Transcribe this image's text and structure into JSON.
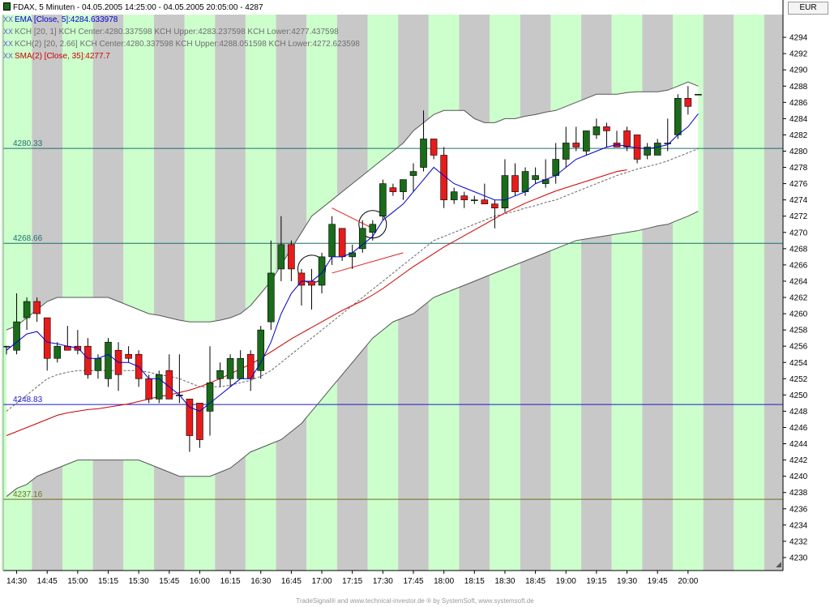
{
  "legend": {
    "title": "FDAX, 5 Minuten - 04.05.2005 14:25:00 - 04.05.2005 20:05:00 - 4287",
    "indicator_prefix": "XX",
    "ema": "EMA [Close, 5]:4284.633978",
    "kch1": "KCH [20, 1] KCH Center:4280.337598 KCH Upper:4283.237598 KCH Lower:4277.437598",
    "kch2": "KCH(2) [20, 2.66] KCH Center:4280.337598 KCH Upper:4288.051598 KCH Lower:4272.623598",
    "sma": "SMA(2) [Close, 35]:4277.7"
  },
  "currency": "EUR",
  "footer": "TradeSignal® and www.technical-investor.de ® by  SystemSoft, www.systemsoft.de",
  "colors": {
    "background": "#ffffff",
    "band_gray": "#c8c8c8",
    "band_green": "#ccffcc",
    "channel_fill": "#ffffff",
    "bull": "#1a6b1a",
    "bear": "#e81b1b",
    "ema": "#0000cc",
    "sma": "#cc0000",
    "kch_center": "#666666",
    "kch_outer": "#555555",
    "hline_teal": "#1f6f6f",
    "hline_blue": "#1a1acc",
    "hline_olive": "#6f6f1f"
  },
  "chart_data": {
    "type": "candlestick",
    "instrument": "FDAX",
    "interval": "5 Minuten",
    "ylim": [
      4228.4,
      4296.8
    ],
    "y_ticks": [
      4230,
      4232,
      4234,
      4236,
      4238,
      4240,
      4242,
      4244,
      4246,
      4248,
      4250,
      4252,
      4254,
      4256,
      4258,
      4260,
      4262,
      4264,
      4266,
      4268,
      4270,
      4272,
      4274,
      4276,
      4278,
      4280,
      4282,
      4284,
      4286,
      4288,
      4290,
      4292,
      4294
    ],
    "x_ticks": [
      "14:30",
      "14:45",
      "15:00",
      "15:15",
      "15:30",
      "15:45",
      "16:00",
      "16:15",
      "16:30",
      "16:45",
      "17:00",
      "17:15",
      "17:30",
      "17:45",
      "18:00",
      "18:15",
      "18:30",
      "18:45",
      "19:00",
      "19:15",
      "19:30",
      "19:45",
      "20:00"
    ],
    "candles": [
      {
        "t": "14:25",
        "o": 4256,
        "h": 4256,
        "l": 4255,
        "c": 4256
      },
      {
        "t": "14:30",
        "o": 4255.5,
        "h": 4262.5,
        "l": 4255,
        "c": 4259
      },
      {
        "t": "14:35",
        "o": 4259.5,
        "h": 4262,
        "l": 4258,
        "c": 4261.5
      },
      {
        "t": "14:40",
        "o": 4261.5,
        "h": 4262,
        "l": 4259,
        "c": 4260
      },
      {
        "t": "14:45",
        "o": 4259.5,
        "h": 4259.5,
        "l": 4253,
        "c": 4254.5
      },
      {
        "t": "14:50",
        "o": 4254.5,
        "h": 4256.5,
        "l": 4254,
        "c": 4256
      },
      {
        "t": "14:55",
        "o": 4256,
        "h": 4258.5,
        "l": 4255.5,
        "c": 4255.5
      },
      {
        "t": "15:00",
        "o": 4256,
        "h": 4258,
        "l": 4255,
        "c": 4255.5
      },
      {
        "t": "15:05",
        "o": 4256,
        "h": 4257,
        "l": 4252,
        "c": 4252.5
      },
      {
        "t": "15:10",
        "o": 4253,
        "h": 4255,
        "l": 4252,
        "c": 4254.5
      },
      {
        "t": "15:15",
        "o": 4252,
        "h": 4257,
        "l": 4251,
        "c": 4256.5
      },
      {
        "t": "15:20",
        "o": 4255.5,
        "h": 4256.5,
        "l": 4250.5,
        "c": 4252.5
      },
      {
        "t": "15:25",
        "o": 4255,
        "h": 4256,
        "l": 4254,
        "c": 4254.5
      },
      {
        "t": "15:30",
        "o": 4255,
        "h": 4255.5,
        "l": 4251,
        "c": 4252
      },
      {
        "t": "15:35",
        "o": 4252,
        "h": 4252.5,
        "l": 4249,
        "c": 4249.5
      },
      {
        "t": "15:40",
        "o": 4249.5,
        "h": 4253,
        "l": 4249,
        "c": 4252.5
      },
      {
        "t": "15:45",
        "o": 4253,
        "h": 4255,
        "l": 4249.5,
        "c": 4249.5
      },
      {
        "t": "15:50",
        "o": 4250,
        "h": 4255,
        "l": 4249,
        "c": 4250
      },
      {
        "t": "15:55",
        "o": 4249.5,
        "h": 4249.5,
        "l": 4243,
        "c": 4245
      },
      {
        "t": "16:00",
        "o": 4249,
        "h": 4249,
        "l": 4243.5,
        "c": 4244.5
      },
      {
        "t": "16:05",
        "o": 4248,
        "h": 4256,
        "l": 4245,
        "c": 4251.5
      },
      {
        "t": "16:10",
        "o": 4252,
        "h": 4254,
        "l": 4251,
        "c": 4253
      },
      {
        "t": "16:15",
        "o": 4252,
        "h": 4255,
        "l": 4251,
        "c": 4254.5
      },
      {
        "t": "16:20",
        "o": 4252,
        "h": 4255.5,
        "l": 4252,
        "c": 4254.5
      },
      {
        "t": "16:25",
        "o": 4255,
        "h": 4255.5,
        "l": 4250.5,
        "c": 4252
      },
      {
        "t": "16:30",
        "o": 4253,
        "h": 4258.5,
        "l": 4252,
        "c": 4258
      },
      {
        "t": "16:35",
        "o": 4259,
        "h": 4269,
        "l": 4258,
        "c": 4265
      },
      {
        "t": "16:40",
        "o": 4265.5,
        "h": 4272,
        "l": 4264,
        "c": 4268.5
      },
      {
        "t": "16:45",
        "o": 4268.5,
        "h": 4269,
        "l": 4264,
        "c": 4265.5
      },
      {
        "t": "16:50",
        "o": 4265,
        "h": 4265.5,
        "l": 4261,
        "c": 4263.5
      },
      {
        "t": "16:55",
        "o": 4264,
        "h": 4265.5,
        "l": 4260.5,
        "c": 4263.5
      },
      {
        "t": "17:00",
        "o": 4263.5,
        "h": 4267.5,
        "l": 4262.5,
        "c": 4267
      },
      {
        "t": "17:05",
        "o": 4267,
        "h": 4272,
        "l": 4266,
        "c": 4271
      },
      {
        "t": "17:10",
        "o": 4270.5,
        "h": 4270.5,
        "l": 4266.5,
        "c": 4267
      },
      {
        "t": "17:15",
        "o": 4267,
        "h": 4268.5,
        "l": 4265.5,
        "c": 4267.5
      },
      {
        "t": "17:20",
        "o": 4268,
        "h": 4271.5,
        "l": 4267.5,
        "c": 4270.5
      },
      {
        "t": "17:25",
        "o": 4270,
        "h": 4271.5,
        "l": 4269,
        "c": 4271
      },
      {
        "t": "17:30",
        "o": 4272,
        "h": 4276.5,
        "l": 4271.5,
        "c": 4276
      },
      {
        "t": "17:35",
        "o": 4275.5,
        "h": 4276,
        "l": 4274.5,
        "c": 4275
      },
      {
        "t": "17:40",
        "o": 4275,
        "h": 4276.5,
        "l": 4274,
        "c": 4276.5
      },
      {
        "t": "17:45",
        "o": 4277,
        "h": 4278.5,
        "l": 4275,
        "c": 4277.5
      },
      {
        "t": "17:50",
        "o": 4278,
        "h": 4285,
        "l": 4277.5,
        "c": 4281.5
      },
      {
        "t": "17:55",
        "o": 4281.5,
        "h": 4281.5,
        "l": 4279,
        "c": 4279.5
      },
      {
        "t": "18:00",
        "o": 4279.5,
        "h": 4280.5,
        "l": 4273,
        "c": 4274
      },
      {
        "t": "18:05",
        "o": 4274,
        "h": 4275.5,
        "l": 4273.5,
        "c": 4275
      },
      {
        "t": "18:10",
        "o": 4274.5,
        "h": 4275,
        "l": 4273,
        "c": 4274
      },
      {
        "t": "18:15",
        "o": 4274,
        "h": 4274.5,
        "l": 4273.5,
        "c": 4274
      },
      {
        "t": "18:20",
        "o": 4274,
        "h": 4276,
        "l": 4273.5,
        "c": 4273.5
      },
      {
        "t": "18:25",
        "o": 4273.5,
        "h": 4274,
        "l": 4270.5,
        "c": 4273
      },
      {
        "t": "18:30",
        "o": 4273,
        "h": 4279,
        "l": 4272.5,
        "c": 4277
      },
      {
        "t": "18:35",
        "o": 4277,
        "h": 4278.5,
        "l": 4274.5,
        "c": 4275
      },
      {
        "t": "18:40",
        "o": 4275,
        "h": 4278,
        "l": 4274.5,
        "c": 4277.5
      },
      {
        "t": "18:45",
        "o": 4276.5,
        "h": 4278,
        "l": 4276,
        "c": 4277
      },
      {
        "t": "18:50",
        "o": 4276,
        "h": 4279,
        "l": 4275.5,
        "c": 4276.5
      },
      {
        "t": "18:55",
        "o": 4277,
        "h": 4281,
        "l": 4276,
        "c": 4279
      },
      {
        "t": "19:00",
        "o": 4279,
        "h": 4283,
        "l": 4278,
        "c": 4281
      },
      {
        "t": "19:05",
        "o": 4281,
        "h": 4283,
        "l": 4280,
        "c": 4280.5
      },
      {
        "t": "19:10",
        "o": 4280,
        "h": 4282,
        "l": 4279.5,
        "c": 4282.5
      },
      {
        "t": "19:15",
        "o": 4282,
        "h": 4284,
        "l": 4281.5,
        "c": 4283
      },
      {
        "t": "19:20",
        "o": 4283,
        "h": 4283.5,
        "l": 4280.5,
        "c": 4282.5
      },
      {
        "t": "19:25",
        "o": 4281,
        "h": 4282.5,
        "l": 4280.5,
        "c": 4280.5
      },
      {
        "t": "19:30",
        "o": 4282.5,
        "h": 4283,
        "l": 4280,
        "c": 4280.5
      },
      {
        "t": "19:35",
        "o": 4282,
        "h": 4282,
        "l": 4278.5,
        "c": 4279
      },
      {
        "t": "19:40",
        "o": 4279.5,
        "h": 4281,
        "l": 4279,
        "c": 4280.5
      },
      {
        "t": "19:45",
        "o": 4279.5,
        "h": 4281.5,
        "l": 4279.5,
        "c": 4281
      },
      {
        "t": "19:50",
        "o": 4281,
        "h": 4284,
        "l": 4280,
        "c": 4281
      },
      {
        "t": "19:55",
        "o": 4282,
        "h": 4287,
        "l": 4281.5,
        "c": 4286.5
      },
      {
        "t": "20:00",
        "o": 4286.5,
        "h": 4288,
        "l": 4284.5,
        "c": 4285.5
      },
      {
        "t": "20:05",
        "o": 4287,
        "h": 4287,
        "l": 4287,
        "c": 4287
      }
    ],
    "ema5": [
      4255.5,
      4256.5,
      4257.5,
      4257.8,
      4256.5,
      4256.3,
      4256,
      4255.8,
      4254.5,
      4254.5,
      4255,
      4254,
      4254,
      4253.5,
      4252,
      4252,
      4251,
      4250,
      4248.5,
      4248,
      4249,
      4250,
      4251,
      4252,
      4252,
      4254,
      4256.5,
      4260,
      4262.5,
      4264,
      4264,
      4265,
      4267,
      4267,
      4267.5,
      4268.5,
      4269.5,
      4271.5,
      4272.5,
      4273.5,
      4275,
      4276.5,
      4278,
      4277,
      4276,
      4275.5,
      4275,
      4274.5,
      4274,
      4274,
      4274.5,
      4275,
      4276,
      4276.5,
      4277,
      4278,
      4279,
      4279.5,
      4280,
      4280.5,
      4280.8,
      4280.6,
      4280.4,
      4280.3,
      4280.5,
      4280.8,
      4282,
      4283,
      4284.6
    ],
    "kch_center": [
      4248,
      4249,
      4250,
      4251,
      4252,
      4252.5,
      4252.8,
      4253,
      4253,
      4253,
      4253,
      4253,
      4253,
      4253,
      4252.8,
      4252.5,
      4252.3,
      4252,
      4251.5,
      4251,
      4251,
      4251,
      4251.2,
      4251.5,
      4251.8,
      4252.3,
      4253,
      4254,
      4255,
      4256,
      4257,
      4258,
      4259,
      4260,
      4261,
      4262,
      4263,
      4264,
      4265,
      4266,
      4267,
      4268,
      4269,
      4269.5,
      4270,
      4270.5,
      4271,
      4271.5,
      4272,
      4272.3,
      4272.6,
      4273,
      4273.3,
      4273.7,
      4274,
      4274.5,
      4275,
      4275.5,
      4276,
      4276.5,
      4277,
      4277.4,
      4277.8,
      4278.1,
      4278.4,
      4278.8,
      4279.3,
      4279.8,
      4280.3
    ],
    "kch_upper": [
      4258,
      4258.5,
      4259.5,
      4260.5,
      4261.5,
      4262,
      4262,
      4262,
      4262,
      4262,
      4262,
      4261.5,
      4261,
      4260.5,
      4260,
      4259.8,
      4259.5,
      4259.2,
      4259,
      4259,
      4259,
      4259.2,
      4259.5,
      4260,
      4261,
      4262.5,
      4264,
      4266,
      4268,
      4270,
      4272,
      4273,
      4274,
      4275,
      4276,
      4277,
      4278,
      4279,
      4280,
      4281,
      4282.5,
      4283.5,
      4284.5,
      4285,
      4285,
      4285,
      4284,
      4283.5,
      4283.5,
      4284,
      4284,
      4284.3,
      4284.5,
      4284.8,
      4285,
      4285.5,
      4286,
      4286.5,
      4287,
      4287,
      4287,
      4287.2,
      4287.3,
      4287.3,
      4287.3,
      4287.5,
      4288,
      4288.5,
      4288
    ],
    "kch_lower": [
      4237.5,
      4238.5,
      4239,
      4240,
      4240.5,
      4241,
      4241.5,
      4242,
      4242,
      4242,
      4242,
      4242,
      4242,
      4242,
      4241.5,
      4241,
      4240.5,
      4240,
      4240,
      4240,
      4240,
      4240.5,
      4241,
      4242,
      4243,
      4243.5,
      4244,
      4244.5,
      4245.5,
      4246.5,
      4248,
      4249.5,
      4251,
      4252.5,
      4254,
      4255.5,
      4257,
      4258,
      4259,
      4259.5,
      4260,
      4261,
      4262,
      4262.5,
      4263,
      4263.5,
      4264,
      4264.5,
      4265,
      4265.5,
      4266,
      4266.5,
      4267,
      4267.5,
      4268,
      4268.5,
      4269,
      4269.2,
      4269.4,
      4269.6,
      4269.8,
      4270,
      4270.2,
      4270.5,
      4270.8,
      4271,
      4271.5,
      4272,
      4272.6
    ],
    "sma35": [
      4245,
      4245.5,
      4246,
      4246.5,
      4247,
      4247.5,
      4247.8,
      4248,
      4248.2,
      4248.3,
      4248.5,
      4248.7,
      4248.9,
      4249.2,
      4249.5,
      4249.8,
      4250,
      4250.3,
      4250.6,
      4251,
      4251.5,
      4252,
      4252.6,
      4253.2,
      4253.8,
      4254.5,
      4255.3,
      4256.1,
      4256.9,
      4257.6,
      4258.3,
      4259,
      4259.7,
      4260.4,
      4261,
      4261.6,
      4262.3,
      4263.1,
      4264,
      4264.9,
      4265.8,
      4266.6,
      4267.4,
      4268.2,
      4268.9,
      4269.6,
      4270.3,
      4271,
      4271.7,
      4272.4,
      4273,
      4273.6,
      4274.1,
      4274.6,
      4275.1,
      4275.5,
      4275.9,
      4276.3,
      4276.7,
      4277.1,
      4277.5,
      4277.7
    ],
    "hlines": [
      {
        "value": 4280.33,
        "label": "4280.33",
        "color": "#1f6f6f"
      },
      {
        "value": 4268.66,
        "label": "4268.66",
        "color": "#1f6f6f"
      },
      {
        "value": 4248.83,
        "label": "4248.83",
        "color": "#1a1acc"
      },
      {
        "value": 4237.16,
        "label": "4237.16",
        "color": "#6f6f1f"
      }
    ],
    "annotations": [
      {
        "type": "circle",
        "t": "16:55",
        "value": 4265.5
      },
      {
        "type": "circle",
        "t": "17:25",
        "value": 4271
      },
      {
        "type": "trend_red",
        "from": {
          "t": "17:05",
          "value": 4273
        },
        "to": {
          "t": "17:25",
          "value": 4270.5
        }
      },
      {
        "type": "trend_red",
        "from": {
          "t": "17:05",
          "value": 4265
        },
        "to": {
          "t": "17:40",
          "value": 4267.5
        }
      }
    ]
  }
}
